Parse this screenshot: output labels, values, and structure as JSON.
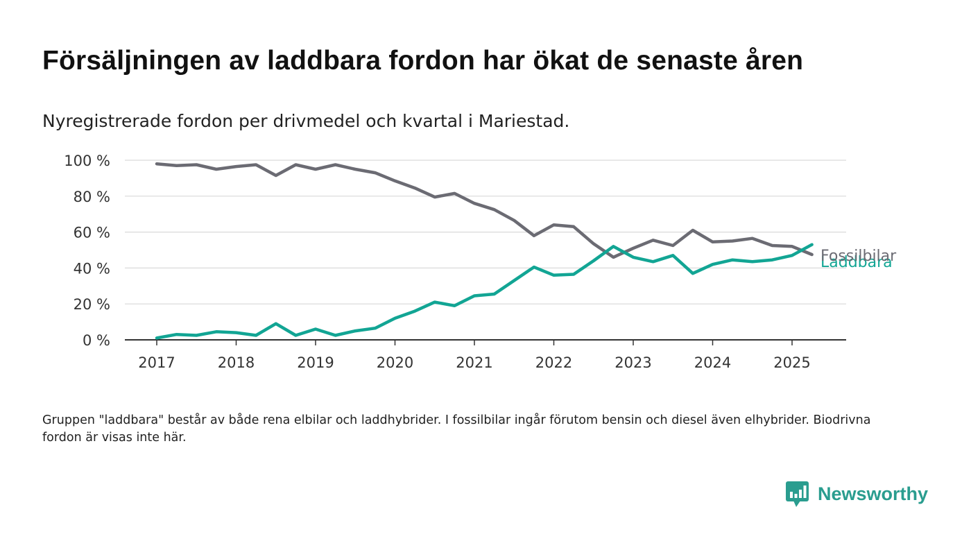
{
  "title": "Försäljningen av laddbara fordon har ökat de senaste åren",
  "subtitle": "Nyregistrerade fordon per drivmedel och kvartal i Mariestad.",
  "footnote": "Gruppen \"laddbara\" består av både rena elbilar och laddhybrider. I fossilbilar ingår förutom bensin och diesel även elhybrider. Biodrivna fordon är visas inte här.",
  "brand": {
    "name": "Newsworthy",
    "icon": "newsworthy-logo-icon",
    "color": "#2a9d8f"
  },
  "chart_data": {
    "type": "line",
    "ylim": [
      0,
      100
    ],
    "xlim": [
      2017,
      2025.75
    ],
    "yticks": [
      0,
      20,
      40,
      60,
      80,
      100
    ],
    "ytick_labels": [
      "0 %",
      "20 %",
      "40 %",
      "60 %",
      "80 %",
      "100 %"
    ],
    "xticks": [
      2017,
      2018,
      2019,
      2020,
      2021,
      2022,
      2023,
      2024,
      2025
    ],
    "xtick_labels": [
      "2017",
      "2018",
      "2019",
      "2020",
      "2021",
      "2022",
      "2023",
      "2024",
      "2025"
    ],
    "grid": true,
    "legend": "direct labels at line ends",
    "x": [
      2017,
      2017.25,
      2017.5,
      2017.75,
      2018,
      2018.25,
      2018.5,
      2018.75,
      2019,
      2019.25,
      2019.5,
      2019.75,
      2020,
      2020.25,
      2020.5,
      2020.75,
      2021,
      2021.25,
      2021.5,
      2021.75,
      2022,
      2022.25,
      2022.5,
      2022.75,
      2023,
      2023.25,
      2023.5,
      2023.75,
      2024,
      2024.25,
      2024.5,
      2024.75,
      2025,
      2025.25
    ],
    "series": [
      {
        "name": "Fossilbilar",
        "color": "#6b6b73",
        "values": [
          98,
          97,
          97.5,
          95,
          96.5,
          97.5,
          91.5,
          97.5,
          95,
          97.5,
          95,
          93,
          88.5,
          84.5,
          79.5,
          81.5,
          76,
          72.5,
          66.5,
          58,
          64,
          63,
          53.5,
          46,
          51,
          55.5,
          52.5,
          61,
          54.5,
          55,
          56.5,
          52.5,
          52,
          47.5
        ]
      },
      {
        "name": "Laddbara",
        "color": "#12a594",
        "values": [
          1,
          3,
          2.5,
          4.5,
          4,
          2.5,
          9,
          2.5,
          6,
          2.5,
          5,
          6.5,
          12,
          16,
          21,
          19,
          24.5,
          25.5,
          33,
          40.5,
          36,
          36.5,
          44,
          52,
          46,
          43.5,
          47,
          37,
          42,
          44.5,
          43.5,
          44.5,
          47,
          53
        ]
      }
    ]
  }
}
